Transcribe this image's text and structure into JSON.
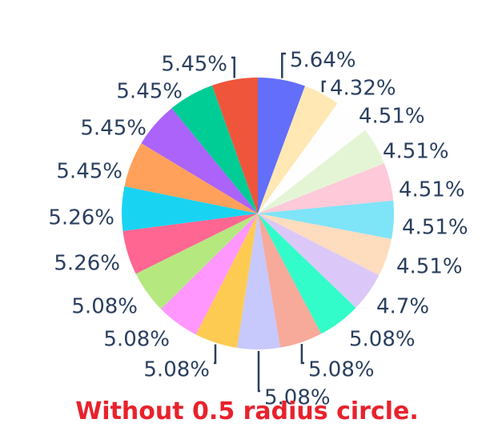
{
  "chart_data": {
    "type": "pie",
    "direction": "clockwise",
    "start": "top",
    "label_color": "#2a3f5f",
    "values": [
      5.64,
      4.32,
      4.51,
      4.51,
      4.51,
      4.51,
      4.51,
      4.7,
      5.08,
      5.08,
      5.08,
      5.08,
      5.08,
      5.08,
      5.26,
      5.26,
      5.45,
      5.45,
      5.45,
      5.45
    ],
    "labels": [
      "5.64%",
      "4.32%",
      "4.51%",
      "4.51%",
      "4.51%",
      "4.51%",
      "4.51%",
      "4.7%",
      "5.08%",
      "5.08%",
      "5.08%",
      "5.08%",
      "5.08%",
      "5.08%",
      "5.26%",
      "5.26%",
      "5.45%",
      "5.45%",
      "5.45%",
      "5.45%"
    ],
    "colors": [
      "#636efa",
      "#ffe8b3",
      "#fefeff",
      "#e4f5d6",
      "#fec9d8",
      "#7ee4f8",
      "#fedcbe",
      "#dcc8f8",
      "#32fcc9",
      "#f7a99a",
      "#c7c8fc",
      "#fecb52",
      "#ff97ff",
      "#b6e880",
      "#ff6692",
      "#19d3f3",
      "#ffa15a",
      "#ab63fa",
      "#00cc96",
      "#ef553b"
    ]
  },
  "caption": "Without 0.5 radius circle."
}
